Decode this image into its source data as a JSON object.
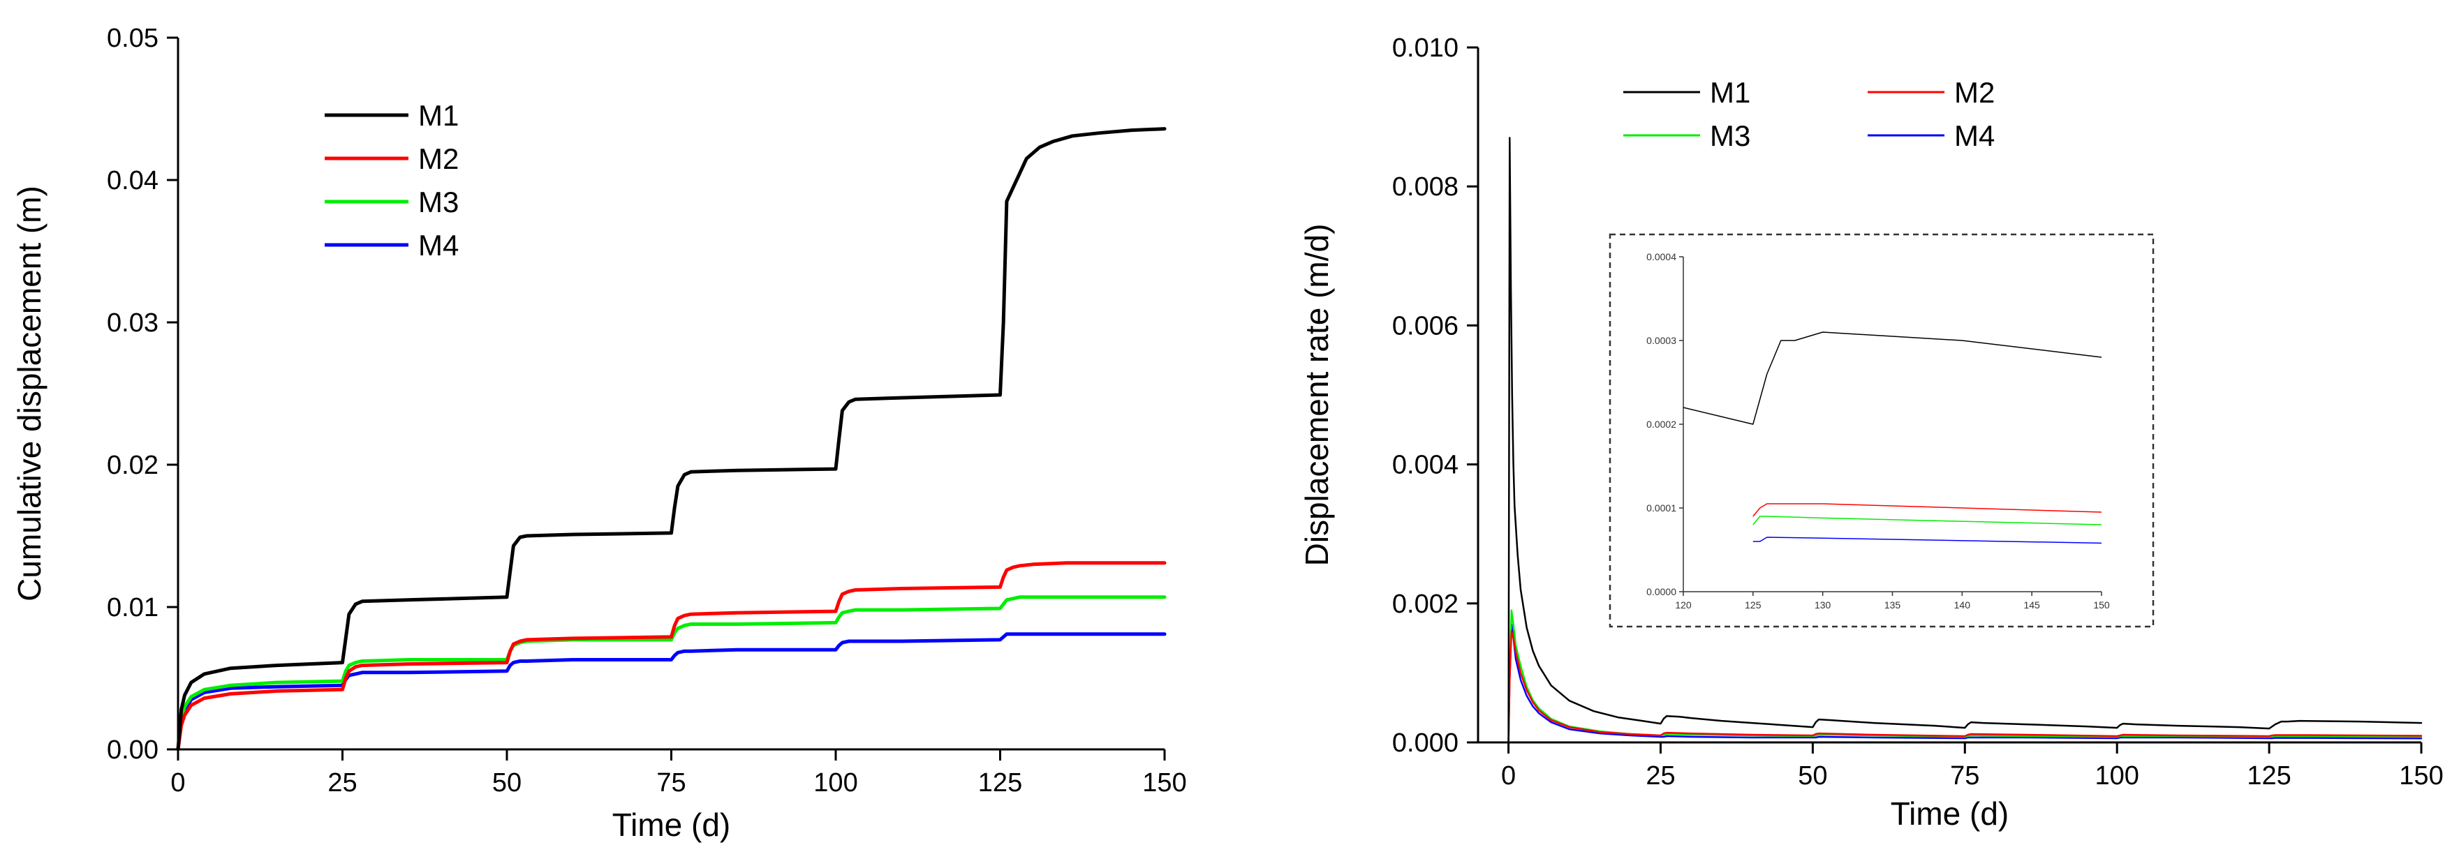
{
  "chart_data": [
    {
      "type": "line",
      "title": "",
      "xlabel": "Time (d)",
      "ylabel": "Cumulative displacement (m)",
      "xlim": [
        0,
        150
      ],
      "ylim": [
        0,
        0.05
      ],
      "xticks": [
        0,
        25,
        50,
        75,
        100,
        125,
        150
      ],
      "xtick_labels": [
        "0",
        "25",
        "50",
        "75",
        "100",
        "125",
        "150"
      ],
      "yticks": [
        0,
        0.01,
        0.02,
        0.03,
        0.04,
        0.05
      ],
      "ytick_labels": [
        "0.00",
        "0.01",
        "0.02",
        "0.03",
        "0.04",
        "0.05"
      ],
      "legend_position": "top-left",
      "series": [
        {
          "name": "M1",
          "color": "#000000",
          "x": [
            0,
            0.5,
            1,
            2,
            4,
            8,
            15,
            25,
            25.5,
            26,
            27,
            28,
            35,
            50,
            50.5,
            51,
            52,
            53,
            60,
            75,
            75.5,
            76,
            77,
            78,
            85,
            100,
            100.5,
            101,
            102,
            103,
            110,
            125,
            125.5,
            126,
            127,
            128,
            129,
            131,
            133,
            136,
            140,
            145,
            150
          ],
          "y": [
            0,
            0.0028,
            0.0038,
            0.0047,
            0.0053,
            0.0057,
            0.0059,
            0.0061,
            0.0078,
            0.0095,
            0.0102,
            0.0104,
            0.0105,
            0.0107,
            0.0125,
            0.0143,
            0.0149,
            0.015,
            0.0151,
            0.0152,
            0.017,
            0.0185,
            0.0193,
            0.0195,
            0.0196,
            0.0197,
            0.0218,
            0.0238,
            0.0244,
            0.0246,
            0.0247,
            0.0249,
            0.03,
            0.0385,
            0.0395,
            0.0405,
            0.0415,
            0.0423,
            0.0427,
            0.0431,
            0.0433,
            0.0435,
            0.0436
          ]
        },
        {
          "name": "M2",
          "color": "#ff0000",
          "x": [
            0,
            0.5,
            1,
            2,
            4,
            8,
            15,
            25,
            25.5,
            26,
            27,
            28,
            35,
            50,
            50.5,
            51,
            52,
            53,
            60,
            75,
            75.5,
            76,
            77,
            78,
            85,
            100,
            100.5,
            101,
            102,
            103,
            110,
            125,
            125.5,
            126,
            127,
            128,
            130,
            135,
            140,
            150
          ],
          "y": [
            0,
            0.0017,
            0.0024,
            0.0031,
            0.0036,
            0.0039,
            0.0041,
            0.0042,
            0.005,
            0.0055,
            0.0058,
            0.0059,
            0.006,
            0.0061,
            0.0069,
            0.0074,
            0.0076,
            0.0077,
            0.0078,
            0.0079,
            0.0087,
            0.0092,
            0.0094,
            0.0095,
            0.0096,
            0.0097,
            0.0104,
            0.0109,
            0.0111,
            0.0112,
            0.0113,
            0.0114,
            0.0121,
            0.0126,
            0.0128,
            0.0129,
            0.013,
            0.0131,
            0.0131,
            0.0131
          ]
        },
        {
          "name": "M3",
          "color": "#00ee00",
          "x": [
            0,
            0.5,
            1,
            2,
            4,
            8,
            15,
            25,
            25.5,
            26,
            27,
            28,
            35,
            50,
            50.5,
            51,
            52,
            53,
            60,
            75,
            75.5,
            76,
            77,
            78,
            85,
            100,
            100.5,
            101,
            102,
            103,
            110,
            125,
            125.5,
            126,
            127,
            128,
            130,
            135,
            140,
            150
          ],
          "y": [
            0,
            0.0021,
            0.003,
            0.0037,
            0.0042,
            0.0045,
            0.0047,
            0.0048,
            0.0055,
            0.0059,
            0.0061,
            0.0062,
            0.0063,
            0.0063,
            0.0069,
            0.0073,
            0.0075,
            0.0076,
            0.0077,
            0.0077,
            0.0082,
            0.0085,
            0.0087,
            0.0088,
            0.0088,
            0.0089,
            0.0093,
            0.0096,
            0.0097,
            0.0098,
            0.0098,
            0.0099,
            0.0102,
            0.0105,
            0.0106,
            0.0107,
            0.0107,
            0.0107,
            0.0107,
            0.0107
          ]
        },
        {
          "name": "M4",
          "color": "#0000ff",
          "x": [
            0,
            0.5,
            1,
            2,
            4,
            8,
            15,
            25,
            25.5,
            26,
            27,
            28,
            35,
            50,
            50.5,
            51,
            52,
            53,
            60,
            75,
            75.5,
            76,
            77,
            78,
            85,
            100,
            100.5,
            101,
            102,
            103,
            110,
            125,
            125.5,
            126,
            127,
            128,
            130,
            135,
            140,
            150
          ],
          "y": [
            0,
            0.0019,
            0.0027,
            0.0035,
            0.004,
            0.0043,
            0.0044,
            0.0045,
            0.0049,
            0.0052,
            0.0053,
            0.0054,
            0.0054,
            0.0055,
            0.0059,
            0.0061,
            0.0062,
            0.0062,
            0.0063,
            0.0063,
            0.0066,
            0.0068,
            0.0069,
            0.0069,
            0.007,
            0.007,
            0.0073,
            0.0075,
            0.0076,
            0.0076,
            0.0076,
            0.0077,
            0.0079,
            0.0081,
            0.0081,
            0.0081,
            0.0081,
            0.0081,
            0.0081,
            0.0081
          ]
        }
      ]
    },
    {
      "type": "line",
      "title": "",
      "xlabel": "Time (d)",
      "ylabel": "Displacement rate (m/d)",
      "xlim": [
        -5,
        150
      ],
      "ylim": [
        0,
        0.01
      ],
      "xticks": [
        0,
        25,
        50,
        75,
        100,
        125,
        150
      ],
      "xtick_labels": [
        "0",
        "25",
        "50",
        "75",
        "100",
        "125",
        "150"
      ],
      "yticks": [
        0,
        0.002,
        0.004,
        0.006,
        0.008,
        0.01
      ],
      "ytick_labels": [
        "0.000",
        "0.002",
        "0.004",
        "0.006",
        "0.008",
        "0.010"
      ],
      "legend_position": "top-left",
      "series": [
        {
          "name": "M1",
          "color": "#000000",
          "x": [
            0,
            0.2,
            0.4,
            0.6,
            0.8,
            1.0,
            1.5,
            2,
            3,
            4,
            5,
            7,
            10,
            14,
            18,
            22,
            25,
            25.5,
            26,
            28,
            30,
            35,
            40,
            45,
            50,
            50.5,
            51,
            53,
            60,
            70,
            75,
            75.5,
            76,
            78,
            85,
            95,
            100,
            100.5,
            101,
            103,
            110,
            120,
            125,
            125.5,
            126,
            127,
            128,
            130,
            140,
            150
          ],
          "y": [
            0,
            0.0087,
            0.0065,
            0.005,
            0.004,
            0.0034,
            0.0027,
            0.0022,
            0.00165,
            0.00132,
            0.0011,
            0.00082,
            0.0006,
            0.00045,
            0.00036,
            0.00031,
            0.00027,
            0.00034,
            0.00038,
            0.00037,
            0.00035,
            0.00031,
            0.00028,
            0.00025,
            0.00022,
            0.00029,
            0.00033,
            0.00032,
            0.00028,
            0.00024,
            0.00021,
            0.00026,
            0.00029,
            0.00028,
            0.00026,
            0.00023,
            0.00021,
            0.00025,
            0.00027,
            0.00026,
            0.00024,
            0.00022,
            0.0002,
            0.00023,
            0.00026,
            0.0003,
            0.0003,
            0.00031,
            0.0003,
            0.00028
          ]
        },
        {
          "name": "M2",
          "color": "#ff0000",
          "x": [
            0,
            0.2,
            0.5,
            0.8,
            1.2,
            2,
            3,
            4,
            5,
            7,
            10,
            15,
            20,
            25,
            25.5,
            26,
            30,
            40,
            50,
            50.5,
            51,
            60,
            75,
            75.5,
            76,
            85,
            100,
            100.5,
            101,
            110,
            125,
            125.5,
            126,
            130,
            150
          ],
          "y": [
            0,
            0.0009,
            0.0016,
            0.0015,
            0.0013,
            0.001,
            0.00075,
            0.00058,
            0.00046,
            0.00032,
            0.00022,
            0.00015,
            0.00012,
            0.0001,
            0.00013,
            0.00014,
            0.00013,
            0.00011,
            0.0001,
            0.00012,
            0.00013,
            0.00011,
            9e-05,
            0.00011,
            0.00012,
            0.00011,
            9e-05,
            0.0001,
            0.00011,
            0.0001,
            9e-05,
            0.0001,
            0.000105,
            0.000105,
            9.5e-05
          ]
        },
        {
          "name": "M3",
          "color": "#00ee00",
          "x": [
            0,
            0.2,
            0.5,
            0.8,
            1.2,
            2,
            3,
            4,
            5,
            7,
            10,
            15,
            20,
            25,
            25.5,
            26,
            30,
            40,
            50,
            50.5,
            51,
            60,
            75,
            75.5,
            76,
            85,
            100,
            100.5,
            101,
            110,
            125,
            125.5,
            126,
            130,
            150
          ],
          "y": [
            0,
            0.001,
            0.0019,
            0.0017,
            0.0014,
            0.0011,
            0.0008,
            0.00061,
            0.00049,
            0.00034,
            0.00023,
            0.00016,
            0.00012,
            0.0001,
            0.00011,
            0.00012,
            0.00011,
            0.0001,
            9e-05,
            0.0001,
            0.00011,
            0.0001,
            8e-05,
            9e-05,
            0.0001,
            9e-05,
            8e-05,
            9e-05,
            9e-05,
            9e-05,
            8e-05,
            9e-05,
            9e-05,
            8.8e-05,
            8e-05
          ]
        },
        {
          "name": "M4",
          "color": "#0000ff",
          "x": [
            0,
            0.2,
            0.5,
            0.8,
            1.2,
            2,
            3,
            4,
            5,
            7,
            10,
            15,
            20,
            25,
            25.5,
            26,
            30,
            40,
            50,
            50.5,
            51,
            60,
            75,
            75.5,
            76,
            85,
            100,
            100.5,
            101,
            110,
            125,
            125.5,
            126,
            130,
            150
          ],
          "y": [
            0,
            0.0009,
            0.0017,
            0.0015,
            0.0012,
            0.0009,
            0.00067,
            0.00052,
            0.00042,
            0.00029,
            0.00019,
            0.00013,
            0.0001,
            8e-05,
            8e-05,
            9e-05,
            8e-05,
            7e-05,
            7e-05,
            7e-05,
            8e-05,
            7e-05,
            6e-05,
            7e-05,
            7e-05,
            7e-05,
            6e-05,
            7e-05,
            7e-05,
            7e-05,
            6e-05,
            6e-05,
            6.5e-05,
            6.4e-05,
            5.8e-05
          ]
        }
      ]
    }
  ],
  "inset": {
    "xlim": [
      120,
      150
    ],
    "ylim": [
      0,
      0.0004
    ],
    "xtick_labels": [
      "120",
      "125",
      "130",
      "135",
      "140",
      "145",
      "150"
    ],
    "ytick_labels": [
      "0.0000",
      "0.0001",
      "0.0002",
      "0.0003",
      "0.0004"
    ]
  }
}
